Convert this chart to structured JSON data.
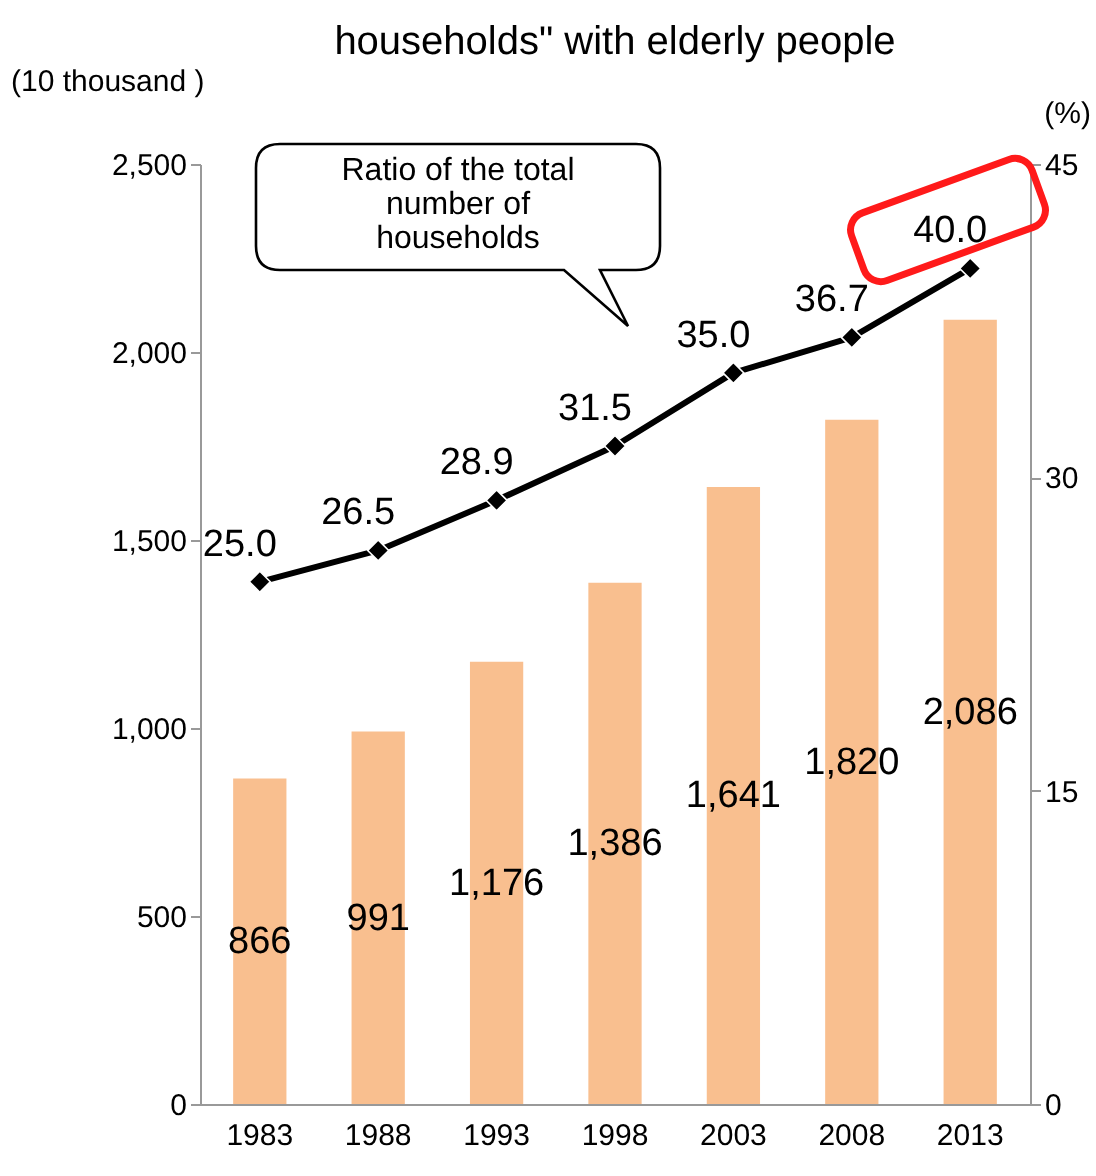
{
  "chart_data": {
    "type": "bar",
    "title": "households\" with elderly people",
    "categories": [
      "1983",
      "1988",
      "1993",
      "1998",
      "2003",
      "2008",
      "2013"
    ],
    "series": [
      {
        "axis": "y",
        "color": "#f9bf8f",
        "values": [
          866,
          991,
          1176,
          1386,
          1641,
          1820,
          2086
        ],
        "value_labels": [
          "866",
          "991",
          "1,176",
          "1,386",
          "1,641",
          "1,820",
          "2,086"
        ]
      },
      {
        "type": "line",
        "axis": "y2",
        "color": "#000000",
        "marker": "diamond",
        "values": [
          25.0,
          26.5,
          28.9,
          31.5,
          35.0,
          36.7,
          40.0
        ],
        "value_labels": [
          "25.0",
          "26.5",
          "28.9",
          "31.5",
          "35.0",
          "36.7",
          "40.0"
        ]
      }
    ],
    "ylabel": "(10 thousand )",
    "y2label": "(%)",
    "ylim": [
      0,
      2500
    ],
    "yticks": [
      0,
      500,
      {
        "value": 1000,
        "label": "1,000"
      },
      {
        "value": 1500,
        "label": "1,500"
      },
      {
        "value": 2000,
        "label": "2,000"
      },
      {
        "value": 2500,
        "label": "2,500"
      }
    ],
    "y2lim": [
      0,
      45
    ],
    "y2ticks": [
      0,
      15,
      30,
      45
    ],
    "annotations": [
      "Ratio of the total number of households"
    ],
    "grid": false
  }
}
